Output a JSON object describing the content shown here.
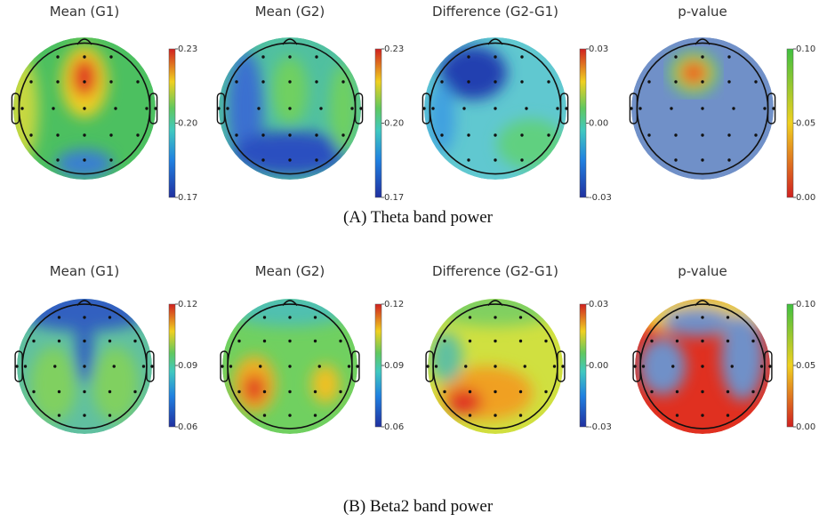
{
  "panels": [
    {
      "caption": "(A) Theta band power",
      "plots": [
        {
          "title": "Mean (G1)",
          "ticks": [
            0.23,
            {
              "value": 0.2,
              "label": "0.20"
            },
            0.17
          ]
        },
        {
          "title": "Mean (G2)",
          "ticks": [
            0.23,
            {
              "value": 0.2,
              "label": "0.20"
            },
            0.17
          ]
        },
        {
          "title": "Difference (G2-G1)",
          "ticks": [
            0.03,
            {
              "value": 0,
              "label": "0.00"
            },
            -0.03
          ]
        },
        {
          "title": "p-value",
          "ticks": [
            {
              "value": 0.1,
              "label": "0.10"
            },
            0.05,
            {
              "value": 0,
              "label": "0.00"
            }
          ]
        }
      ]
    },
    {
      "caption": "(B) Beta2 band power",
      "plots": [
        {
          "title": "Mean (G1)",
          "ticks": [
            0.12,
            0.09,
            0.06
          ]
        },
        {
          "title": "Mean (G2)",
          "ticks": [
            0.12,
            0.09,
            0.06
          ]
        },
        {
          "title": "Difference (G2-G1)",
          "ticks": [
            0.03,
            {
              "value": 0,
              "label": "0.00"
            },
            -0.03
          ]
        },
        {
          "title": "p-value",
          "ticks": [
            {
              "value": 0.1,
              "label": "0.10"
            },
            0.05,
            {
              "value": 0,
              "label": "0.00"
            }
          ]
        }
      ]
    }
  ]
}
